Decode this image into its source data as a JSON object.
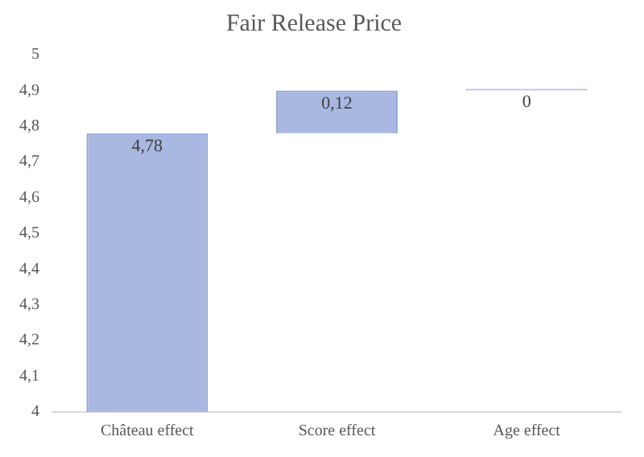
{
  "chart_data": {
    "type": "bar",
    "title": "Fair Release Price",
    "categories": [
      "Château effect",
      "Score effect",
      "Age effect"
    ],
    "values": [
      4.78,
      0.12,
      0
    ],
    "base": [
      null,
      4.78,
      4.9
    ],
    "value_labels": [
      "4,78",
      "0,12",
      "0"
    ],
    "color": "#a9b8e1",
    "ylim": [
      4,
      5
    ],
    "yticks": [
      {
        "value": 4,
        "label": "4"
      },
      {
        "value": 4.1,
        "label": "4,1"
      },
      {
        "value": 4.2,
        "label": "4,2"
      },
      {
        "value": 4.3,
        "label": "4,3"
      },
      {
        "value": 4.4,
        "label": "4,4"
      },
      {
        "value": 4.5,
        "label": "4,5"
      },
      {
        "value": 4.6,
        "label": "4,6"
      },
      {
        "value": 4.7,
        "label": "4,7"
      },
      {
        "value": 4.8,
        "label": "4,8"
      },
      {
        "value": 4.9,
        "label": "4,9"
      },
      {
        "value": 5,
        "label": "5"
      }
    ],
    "grid": false,
    "legend": false
  }
}
